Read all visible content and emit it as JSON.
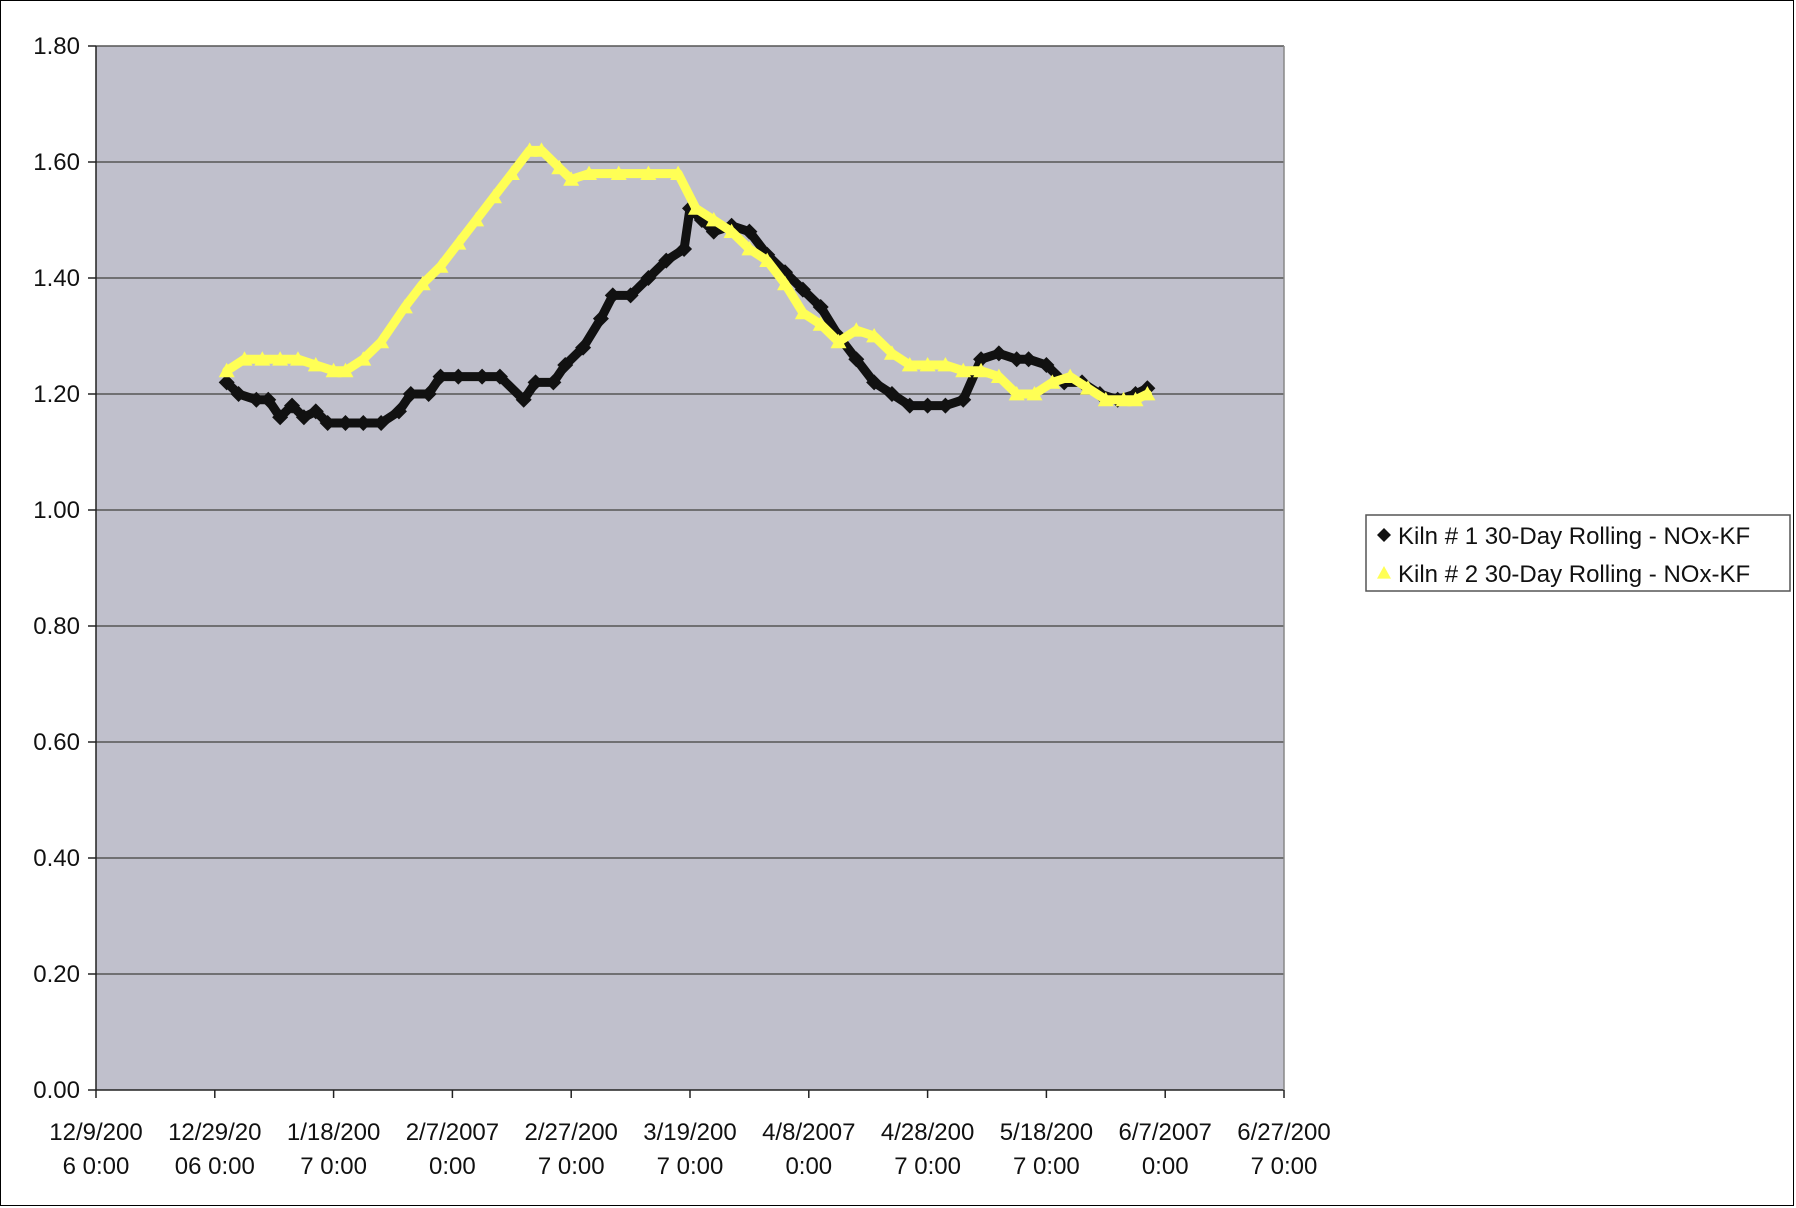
{
  "chart_data": {
    "type": "line",
    "title": "",
    "xlabel": "",
    "ylabel": "",
    "ylim": [
      0,
      1.8
    ],
    "yticks": [
      "0.00",
      "0.20",
      "0.40",
      "0.60",
      "0.80",
      "1.00",
      "1.20",
      "1.40",
      "1.60",
      "1.80"
    ],
    "xlim": [
      "2006-12-09",
      "2007-06-27"
    ],
    "xticks": [
      {
        "date": "2006-12-09",
        "l1": "12/9/200",
        "l2": "6 0:00"
      },
      {
        "date": "2006-12-29",
        "l1": "12/29/20",
        "l2": "06 0:00"
      },
      {
        "date": "2007-01-18",
        "l1": "1/18/200",
        "l2": "7 0:00"
      },
      {
        "date": "2007-02-07",
        "l1": "2/7/2007",
        "l2": "0:00"
      },
      {
        "date": "2007-02-27",
        "l1": "2/27/200",
        "l2": "7 0:00"
      },
      {
        "date": "2007-03-19",
        "l1": "3/19/200",
        "l2": "7 0:00"
      },
      {
        "date": "2007-04-08",
        "l1": "4/8/2007",
        "l2": "0:00"
      },
      {
        "date": "2007-04-28",
        "l1": "4/28/200",
        "l2": "7 0:00"
      },
      {
        "date": "2007-05-18",
        "l1": "5/18/200",
        "l2": "7 0:00"
      },
      {
        "date": "2007-06-07",
        "l1": "6/7/2007",
        "l2": "0:00"
      },
      {
        "date": "2007-06-27",
        "l1": "6/27/200",
        "l2": "7 0:00"
      }
    ],
    "grid": true,
    "legend": "right",
    "colors": {
      "plot_bg": "#c0c0cc",
      "grid": "#555555",
      "kiln1": "#111111",
      "kiln2": "#ffff55"
    },
    "series": [
      {
        "name": "Kiln # 1 30-Day Rolling - NOx-KF",
        "marker": "diamond",
        "x": [
          "2006-12-31",
          "2007-01-02",
          "2007-01-05",
          "2007-01-07",
          "2007-01-09",
          "2007-01-11",
          "2007-01-13",
          "2007-01-15",
          "2007-01-17",
          "2007-01-20",
          "2007-01-23",
          "2007-01-26",
          "2007-01-29",
          "2007-01-31",
          "2007-02-03",
          "2007-02-05",
          "2007-02-08",
          "2007-02-12",
          "2007-02-15",
          "2007-02-19",
          "2007-02-21",
          "2007-02-24",
          "2007-02-26",
          "2007-03-01",
          "2007-03-04",
          "2007-03-06",
          "2007-03-09",
          "2007-03-12",
          "2007-03-15",
          "2007-03-18",
          "2007-03-19",
          "2007-03-21",
          "2007-03-23",
          "2007-03-26",
          "2007-03-29",
          "2007-04-01",
          "2007-04-04",
          "2007-04-07",
          "2007-04-10",
          "2007-04-13",
          "2007-04-16",
          "2007-04-19",
          "2007-04-22",
          "2007-04-25",
          "2007-04-28",
          "2007-05-01",
          "2007-05-04",
          "2007-05-07",
          "2007-05-10",
          "2007-05-13",
          "2007-05-15",
          "2007-05-18",
          "2007-05-21",
          "2007-05-24",
          "2007-05-27",
          "2007-05-30",
          "2007-06-02",
          "2007-06-04"
        ],
        "y": [
          1.22,
          1.2,
          1.19,
          1.19,
          1.16,
          1.18,
          1.16,
          1.17,
          1.15,
          1.15,
          1.15,
          1.15,
          1.17,
          1.2,
          1.2,
          1.23,
          1.23,
          1.23,
          1.23,
          1.19,
          1.22,
          1.22,
          1.25,
          1.28,
          1.33,
          1.37,
          1.37,
          1.4,
          1.43,
          1.45,
          1.52,
          1.5,
          1.48,
          1.49,
          1.48,
          1.44,
          1.41,
          1.38,
          1.35,
          1.3,
          1.26,
          1.22,
          1.2,
          1.18,
          1.18,
          1.18,
          1.19,
          1.26,
          1.27,
          1.26,
          1.26,
          1.25,
          1.22,
          1.22,
          1.2,
          1.19,
          1.2,
          1.21
        ]
      },
      {
        "name": "Kiln # 2 30-Day Rolling - NOx-KF",
        "marker": "triangle",
        "x": [
          "2006-12-31",
          "2007-01-03",
          "2007-01-06",
          "2007-01-09",
          "2007-01-12",
          "2007-01-15",
          "2007-01-18",
          "2007-01-20",
          "2007-01-23",
          "2007-01-26",
          "2007-01-30",
          "2007-02-02",
          "2007-02-05",
          "2007-02-08",
          "2007-02-11",
          "2007-02-14",
          "2007-02-17",
          "2007-02-20",
          "2007-02-22",
          "2007-02-25",
          "2007-02-27",
          "2007-03-02",
          "2007-03-07",
          "2007-03-12",
          "2007-03-17",
          "2007-03-20",
          "2007-03-23",
          "2007-03-26",
          "2007-03-29",
          "2007-04-01",
          "2007-04-04",
          "2007-04-07",
          "2007-04-10",
          "2007-04-13",
          "2007-04-16",
          "2007-04-19",
          "2007-04-22",
          "2007-04-25",
          "2007-04-28",
          "2007-05-01",
          "2007-05-04",
          "2007-05-07",
          "2007-05-10",
          "2007-05-13",
          "2007-05-16",
          "2007-05-19",
          "2007-05-22",
          "2007-05-25",
          "2007-05-28",
          "2007-05-31",
          "2007-06-02",
          "2007-06-04"
        ],
        "y": [
          1.24,
          1.26,
          1.26,
          1.26,
          1.26,
          1.25,
          1.24,
          1.24,
          1.26,
          1.29,
          1.35,
          1.39,
          1.42,
          1.46,
          1.5,
          1.54,
          1.58,
          1.62,
          1.62,
          1.59,
          1.57,
          1.58,
          1.58,
          1.58,
          1.58,
          1.52,
          1.5,
          1.48,
          1.45,
          1.43,
          1.39,
          1.34,
          1.32,
          1.29,
          1.31,
          1.3,
          1.27,
          1.25,
          1.25,
          1.25,
          1.24,
          1.24,
          1.23,
          1.2,
          1.2,
          1.22,
          1.23,
          1.21,
          1.19,
          1.19,
          1.19,
          1.2
        ]
      }
    ]
  }
}
